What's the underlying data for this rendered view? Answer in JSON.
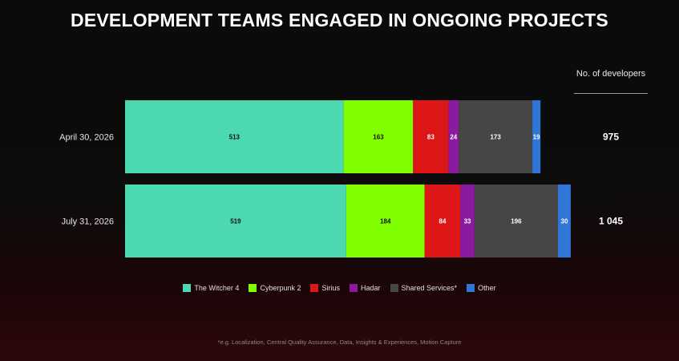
{
  "chart_data": {
    "type": "bar",
    "orientation": "horizontal",
    "stacked": true,
    "title": "DEVELOPMENT TEAMS ENGAGED IN ONGOING PROJECTS",
    "categories": [
      "April 30, 2026",
      "July 31, 2026"
    ],
    "series": [
      {
        "name": "The Witcher 4",
        "values": [
          513,
          519
        ],
        "color": "#4cd8b0"
      },
      {
        "name": "Cyberpunk 2",
        "values": [
          163,
          184
        ],
        "color": "#80ff00"
      },
      {
        "name": "Sirius",
        "values": [
          83,
          84
        ],
        "color": "#dd1717"
      },
      {
        "name": "Hadar",
        "values": [
          24,
          33
        ],
        "color": "#8a1b9e"
      },
      {
        "name": "Shared Services*",
        "values": [
          173,
          196
        ],
        "color": "#464646"
      },
      {
        "name": "Other",
        "values": [
          19,
          30
        ],
        "color": "#2f76d6"
      }
    ],
    "totals_header": "No. of developers",
    "totals_labels": [
      "975",
      "1 045"
    ],
    "totals": [
      975,
      1045
    ],
    "legend_position": "bottom",
    "grid": false,
    "xlim": [
      0,
      1045
    ]
  },
  "footnote": "*e.g. Localization, Central Quality Assurance, Data, Insights & Experiences, Motion Capture"
}
